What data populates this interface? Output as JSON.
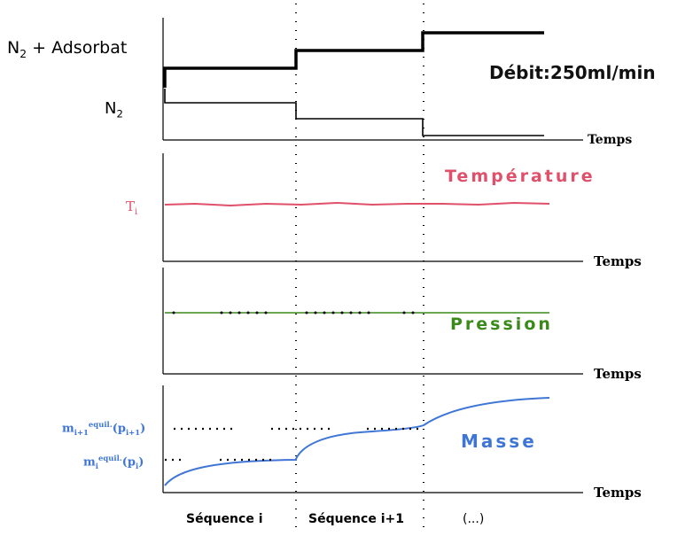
{
  "flow_panel": {
    "n2_adsorbat_label_main": "N",
    "n2_adsorbat_label_sub": "2",
    "n2_adsorbat_label_rest": " + Adsorbat",
    "n2_label_main": "N",
    "n2_label_sub": "2",
    "debit": "Débit:250ml/min",
    "axis": "Temps"
  },
  "temperature_panel": {
    "title": "Température",
    "ti_main": "T",
    "ti_sub": "i",
    "axis": "Temps"
  },
  "pressure_panel": {
    "title": "Pression",
    "axis": "Temps"
  },
  "mass_panel": {
    "title": "Masse",
    "m_upper_main": "m",
    "m_upper_sub": "i+1",
    "m_upper_sup": "equil.",
    "m_upper_arg_open": "(p",
    "m_upper_arg_sub": "i+1",
    "m_upper_arg_close": ")",
    "m_lower_main": "m",
    "m_lower_sub": "i",
    "m_lower_sup": "equil.",
    "m_lower_arg_open": "(p",
    "m_lower_arg_sub": "i",
    "m_lower_arg_close": ")",
    "axis": "Temps"
  },
  "sequences": {
    "seq_i": "Séquence i",
    "seq_i1": "Séquence i+1",
    "ellipsis": "(...)"
  },
  "colors": {
    "temperature": "#e0506a",
    "pressure": "#3a8a1a",
    "mass": "#3f76d6",
    "axis": "#000000"
  }
}
